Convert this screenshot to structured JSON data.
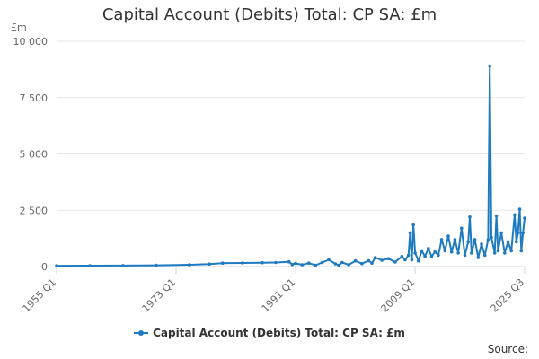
{
  "chart_data": {
    "type": "line",
    "title": "Capital Account (Debits) Total: CP SA: £m",
    "unit_label": "£m",
    "xlabel": "",
    "ylabel": "",
    "x_start": "1955 Q1",
    "x_end": "2025 Q3",
    "x_ticks": [
      "1955 Q1",
      "1973 Q1",
      "1991 Q1",
      "2009 Q1",
      "2025 Q3"
    ],
    "y_ticks": [
      "0",
      "2 500",
      "5 000",
      "7 500",
      "10 000"
    ],
    "ylim": [
      0,
      10000
    ],
    "grid": true,
    "legend_position": "bottom",
    "color": "#1f7bbf",
    "series": [
      {
        "name": "Capital Account (Debits) Total: CP SA: £m",
        "points": [
          [
            "1955 Q1",
            35
          ],
          [
            "1960 Q1",
            40
          ],
          [
            "1965 Q1",
            45
          ],
          [
            "1970 Q1",
            55
          ],
          [
            "1975 Q1",
            80
          ],
          [
            "1978 Q1",
            110
          ],
          [
            "1980 Q1",
            150
          ],
          [
            "1983 Q1",
            160
          ],
          [
            "1986 Q1",
            170
          ],
          [
            "1988 Q1",
            180
          ],
          [
            "1990 Q1",
            210
          ],
          [
            "1990 Q3",
            90
          ],
          [
            "1991 Q1",
            140
          ],
          [
            "1992 Q1",
            80
          ],
          [
            "1993 Q1",
            150
          ],
          [
            "1994 Q1",
            60
          ],
          [
            "1995 Q1",
            180
          ],
          [
            "1996 Q1",
            300
          ],
          [
            "1997 Q1",
            120
          ],
          [
            "1997 Q3",
            60
          ],
          [
            "1998 Q1",
            180
          ],
          [
            "1999 Q1",
            80
          ],
          [
            "2000 Q1",
            250
          ],
          [
            "2001 Q1",
            130
          ],
          [
            "2002 Q1",
            260
          ],
          [
            "2002 Q3",
            150
          ],
          [
            "2003 Q1",
            400
          ],
          [
            "2004 Q1",
            280
          ],
          [
            "2005 Q1",
            350
          ],
          [
            "2006 Q1",
            200
          ],
          [
            "2007 Q1",
            450
          ],
          [
            "2007 Q3",
            300
          ],
          [
            "2008 Q1",
            500
          ],
          [
            "2008 Q2",
            1500
          ],
          [
            "2008 Q3",
            300
          ],
          [
            "2008 Q4",
            1850
          ],
          [
            "2009 Q1",
            600
          ],
          [
            "2009 Q3",
            250
          ],
          [
            "2010 Q1",
            700
          ],
          [
            "2010 Q3",
            450
          ],
          [
            "2011 Q1",
            800
          ],
          [
            "2011 Q3",
            450
          ],
          [
            "2012 Q1",
            650
          ],
          [
            "2012 Q3",
            500
          ],
          [
            "2013 Q1",
            1200
          ],
          [
            "2013 Q3",
            700
          ],
          [
            "2014 Q1",
            1350
          ],
          [
            "2014 Q3",
            650
          ],
          [
            "2015 Q1",
            1200
          ],
          [
            "2015 Q3",
            600
          ],
          [
            "2016 Q1",
            1700
          ],
          [
            "2016 Q3",
            500
          ],
          [
            "2017 Q1",
            1100
          ],
          [
            "2017 Q2",
            2200
          ],
          [
            "2017 Q3",
            600
          ],
          [
            "2018 Q1",
            1200
          ],
          [
            "2018 Q3",
            400
          ],
          [
            "2019 Q1",
            1000
          ],
          [
            "2019 Q3",
            500
          ],
          [
            "2020 Q1",
            1200
          ],
          [
            "2020 Q2",
            8900
          ],
          [
            "2020 Q3",
            1300
          ],
          [
            "2021 Q1",
            600
          ],
          [
            "2021 Q2",
            2250
          ],
          [
            "2021 Q3",
            700
          ],
          [
            "2022 Q1",
            1500
          ],
          [
            "2022 Q3",
            600
          ],
          [
            "2023 Q1",
            1100
          ],
          [
            "2023 Q3",
            700
          ],
          [
            "2024 Q1",
            2300
          ],
          [
            "2024 Q2",
            1100
          ],
          [
            "2024 Q3",
            1500
          ],
          [
            "2024 Q4",
            2550
          ],
          [
            "2025 Q1",
            700
          ],
          [
            "2025 Q2",
            1500
          ],
          [
            "2025 Q3",
            2150
          ]
        ]
      }
    ]
  },
  "footer": {
    "source_label": "Source:"
  }
}
